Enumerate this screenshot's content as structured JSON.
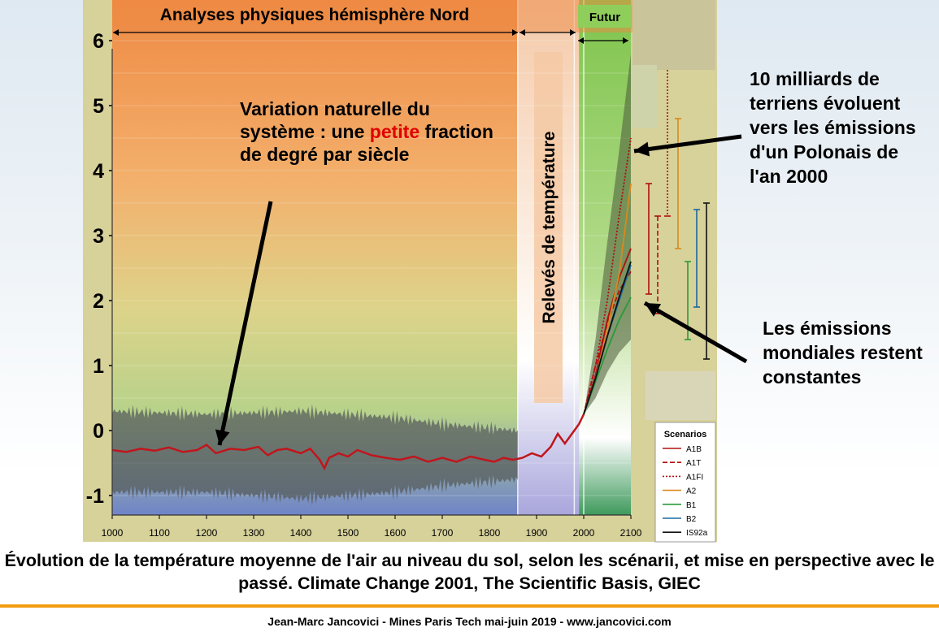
{
  "chart_data": {
    "type": "line",
    "title": "",
    "xlabel": "",
    "ylabel": "",
    "xlim": [
      1000,
      2100
    ],
    "ylim": [
      -1.3,
      6.5
    ],
    "x_ticks": [
      1000,
      1100,
      1200,
      1300,
      1400,
      1500,
      1600,
      1700,
      1800,
      1900,
      2000,
      2100
    ],
    "y_ticks": [
      6,
      5,
      4,
      3,
      2,
      1,
      0,
      -1
    ],
    "periods": [
      {
        "label": "Analyses physiques hémisphère Nord",
        "start": 1000,
        "end": 1860,
        "color": "#f0a060"
      },
      {
        "label": "Relevés de température",
        "start": 1860,
        "end": 1990,
        "color": "#ffffff"
      },
      {
        "label": "Futur",
        "start": 1990,
        "end": 2100,
        "color": "#8fce5a"
      }
    ],
    "historical_series": {
      "name": "",
      "color": "#c0161c",
      "x": [
        1000,
        1030,
        1060,
        1090,
        1120,
        1150,
        1180,
        1200,
        1220,
        1250,
        1280,
        1310,
        1330,
        1350,
        1370,
        1400,
        1420,
        1440,
        1450,
        1460,
        1480,
        1500,
        1520,
        1550,
        1580,
        1610,
        1640,
        1670,
        1700,
        1730,
        1760,
        1790,
        1810,
        1830,
        1850,
        1870,
        1890,
        1910,
        1930,
        1945,
        1960,
        1975,
        1990,
        2000
      ],
      "y": [
        -0.3,
        -0.33,
        -0.28,
        -0.31,
        -0.26,
        -0.33,
        -0.3,
        -0.22,
        -0.35,
        -0.28,
        -0.3,
        -0.25,
        -0.38,
        -0.3,
        -0.28,
        -0.35,
        -0.28,
        -0.45,
        -0.58,
        -0.42,
        -0.35,
        -0.4,
        -0.3,
        -0.38,
        -0.42,
        -0.45,
        -0.4,
        -0.48,
        -0.42,
        -0.48,
        -0.4,
        -0.45,
        -0.48,
        -0.42,
        -0.45,
        -0.42,
        -0.35,
        -0.4,
        -0.25,
        -0.05,
        -0.2,
        -0.05,
        0.1,
        0.25
      ]
    },
    "uncertainty_band": {
      "x": [
        1000,
        1200,
        1400,
        1600,
        1700,
        1860
      ],
      "upper": [
        0.3,
        0.25,
        0.3,
        0.2,
        0.1,
        0.0
      ],
      "lower": [
        -0.95,
        -0.95,
        -1.05,
        -0.95,
        -0.85,
        -0.75
      ]
    },
    "projection_envelope": {
      "x": [
        2000,
        2025,
        2050,
        2075,
        2100
      ],
      "upper": [
        0.25,
        1.4,
        2.9,
        4.3,
        5.8
      ],
      "lower": [
        0.25,
        0.5,
        0.9,
        1.2,
        1.4
      ]
    },
    "legend": {
      "title": "Scenarios",
      "placement": "bottom-right",
      "entries": [
        {
          "name": "A1B",
          "color": "#b01010",
          "style": "solid"
        },
        {
          "name": "A1T",
          "color": "#b01010",
          "style": "dashed"
        },
        {
          "name": "A1FI",
          "color": "#b01010",
          "style": "dotted"
        },
        {
          "name": "A2",
          "color": "#d98a1e",
          "style": "solid"
        },
        {
          "name": "B1",
          "color": "#2a9a3a",
          "style": "solid"
        },
        {
          "name": "B2",
          "color": "#1a6aa0",
          "style": "solid"
        },
        {
          "name": "IS92a",
          "color": "#111111",
          "style": "solid"
        }
      ]
    },
    "scenarios": [
      {
        "name": "A1B",
        "x": [
          2000,
          2025,
          2050,
          2075,
          2100
        ],
        "y": [
          0.25,
          0.85,
          1.7,
          2.35,
          2.8
        ]
      },
      {
        "name": "A1T",
        "x": [
          2000,
          2025,
          2050,
          2075,
          2100
        ],
        "y": [
          0.25,
          1.0,
          1.65,
          2.15,
          2.45
        ]
      },
      {
        "name": "A1FI",
        "x": [
          2000,
          2025,
          2050,
          2075,
          2100
        ],
        "y": [
          0.25,
          1.0,
          2.0,
          3.3,
          4.5
        ]
      },
      {
        "name": "A2",
        "x": [
          2000,
          2025,
          2050,
          2075,
          2100
        ],
        "y": [
          0.25,
          0.8,
          1.55,
          2.4,
          3.8
        ]
      },
      {
        "name": "B1",
        "x": [
          2000,
          2025,
          2050,
          2075,
          2100
        ],
        "y": [
          0.25,
          0.75,
          1.25,
          1.7,
          2.05
        ]
      },
      {
        "name": "B2",
        "x": [
          2000,
          2025,
          2050,
          2075,
          2100
        ],
        "y": [
          0.25,
          0.8,
          1.45,
          2.0,
          2.55
        ]
      },
      {
        "name": "IS92a",
        "x": [
          2000,
          2025,
          2050,
          2075,
          2100
        ],
        "y": [
          0.25,
          0.8,
          1.45,
          2.05,
          2.6
        ]
      }
    ],
    "range_bars": [
      {
        "name": "A1B",
        "low": 2.1,
        "high": 3.8,
        "color": "#b01010",
        "style": "solid"
      },
      {
        "name": "A1T",
        "low": 1.8,
        "high": 3.3,
        "color": "#b01010",
        "style": "dashed"
      },
      {
        "name": "A1FI",
        "low": 3.3,
        "high": 5.6,
        "color": "#b01010",
        "style": "dotted"
      },
      {
        "name": "A2",
        "low": 2.8,
        "high": 4.8,
        "color": "#d98a1e",
        "style": "solid"
      },
      {
        "name": "B1",
        "low": 1.4,
        "high": 2.6,
        "color": "#2a9a3a",
        "style": "solid"
      },
      {
        "name": "B2",
        "low": 1.9,
        "high": 3.4,
        "color": "#1a6aa0",
        "style": "solid"
      },
      {
        "name": "IS92a",
        "low": 1.1,
        "high": 3.5,
        "color": "#111111",
        "style": "solid"
      }
    ]
  },
  "annotations": {
    "natural_variation": {
      "before": "Variation naturelle du système : une ",
      "highlight": "petite",
      "after": " fraction de degré par siècle"
    },
    "poland": "10 milliards de terriens évoluent vers les émissions d'un Polonais de l'an 2000",
    "constant": "Les émissions mondiales restent constantes"
  },
  "caption": "Évolution de la température moyenne de l'air au niveau du sol, selon les scénarii, et mise en perspective avec le passé. Climate Change 2001, The Scientific Basis, GIEC",
  "footer": "Jean-Marc Jancovici - Mines Paris Tech mai-juin 2019 - www.jancovici.com",
  "colors": {
    "accent_line": "#f39c12"
  }
}
